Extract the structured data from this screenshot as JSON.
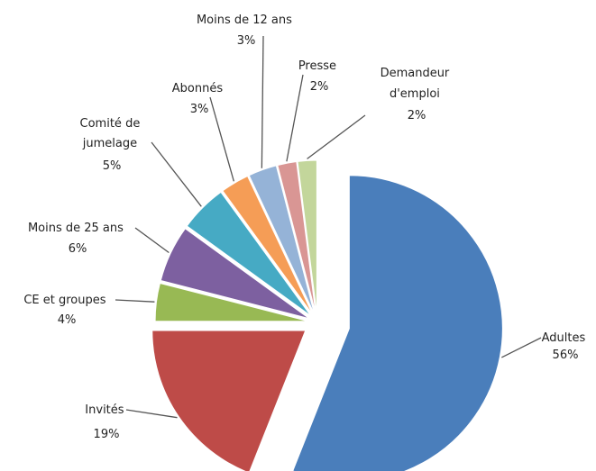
{
  "chart_data": {
    "type": "pie",
    "title": "",
    "slices": [
      {
        "name": "Adultes",
        "value": 56,
        "label": "56%",
        "color": "#4a7ebb"
      },
      {
        "name": "Invités",
        "value": 19,
        "label": "19%",
        "color": "#be4b48"
      },
      {
        "name": "CE et groupes",
        "value": 4,
        "label": "4%",
        "color": "#98b954"
      },
      {
        "name": "Moins de 25 ans",
        "value": 6,
        "label": "6%",
        "color": "#7d60a0"
      },
      {
        "name": "Comité de jumelage",
        "value": 5,
        "label": "5%",
        "color": "#46aac4"
      },
      {
        "name": "Abonnés",
        "value": 3,
        "label": "3%",
        "color": "#f59d56"
      },
      {
        "name": "Moins de 12 ans",
        "value": 3,
        "label": "3%",
        "color": "#95b3d7"
      },
      {
        "name": "Presse",
        "value": 2,
        "label": "2%",
        "color": "#d99694"
      },
      {
        "name": "Demandeur d'emploi",
        "value": 2,
        "label": "2%",
        "color": "#c3d69b"
      }
    ],
    "exploded": true,
    "legend": "none",
    "data_labels": "outside with leader lines"
  }
}
